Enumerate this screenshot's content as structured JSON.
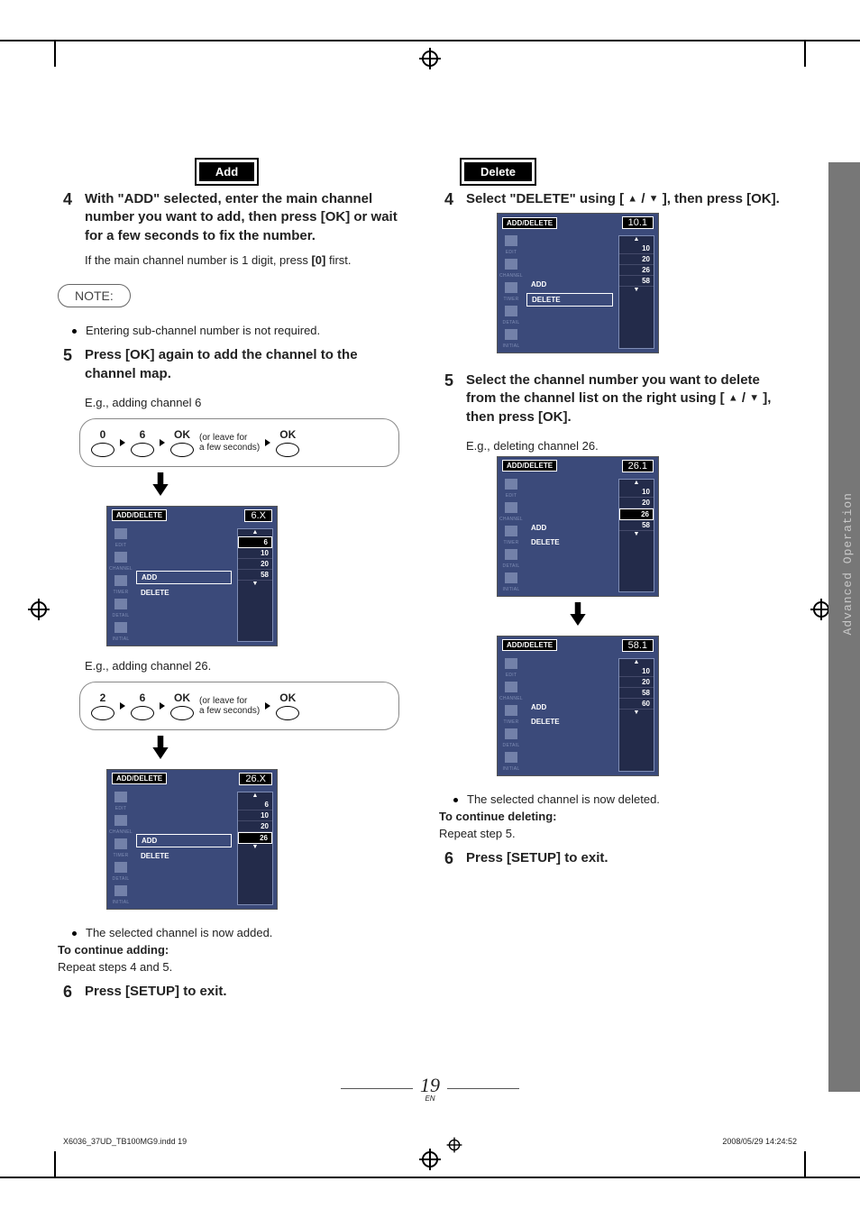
{
  "left": {
    "tag": "Add",
    "step4": {
      "num": "4",
      "body_parts": [
        "With \"ADD\" selected, enter the main channel number you want to add, then press ",
        "[OK]",
        " or wait for a few seconds to fix the number."
      ],
      "sub_parts": [
        "If the main channel number is 1 digit, press ",
        "[0]",
        " first."
      ]
    },
    "note_label": "NOTE:",
    "note_bullet": "Entering sub-channel number is not required.",
    "step5": {
      "num": "5",
      "body": "Press [OK] again to add the channel to the channel map."
    },
    "eg6": "E.g., adding channel 6",
    "seq6": {
      "b1": "0",
      "b2": "6",
      "b3": "OK",
      "leave1": "(or leave for",
      "leave2": "a few seconds)",
      "b4": "OK"
    },
    "tv6": {
      "title": "ADD/DELETE",
      "ch": "6.X",
      "sidebar": [
        "EDIT",
        "CHANNEL",
        "TIMER",
        "DETAIL",
        "INITIAL"
      ],
      "opts": {
        "add": "ADD",
        "del": "DELETE",
        "sel": "add"
      },
      "list": [
        "6",
        "10",
        "20",
        "58"
      ],
      "highlight": "6"
    },
    "eg26": "E.g., adding channel 26.",
    "seq26": {
      "b1": "2",
      "b2": "6",
      "b3": "OK",
      "leave1": "(or leave for",
      "leave2": "a few seconds)",
      "b4": "OK"
    },
    "tv26": {
      "title": "ADD/DELETE",
      "ch": "26.X",
      "sidebar": [
        "EDIT",
        "CHANNEL",
        "TIMER",
        "DETAIL",
        "INITIAL"
      ],
      "opts": {
        "add": "ADD",
        "del": "DELETE",
        "sel": "add"
      },
      "list": [
        "6",
        "10",
        "20",
        "26"
      ],
      "highlight": "26"
    },
    "added_bullet": "The selected channel is now added.",
    "to_continue": "To continue adding:",
    "repeat": "Repeat steps 4 and 5.",
    "step6": {
      "num": "6",
      "body": "Press [SETUP] to exit."
    }
  },
  "right": {
    "tag": "Delete",
    "step4": {
      "num": "4",
      "pre": "Select \"DELETE\" using [ ",
      "mid": " / ",
      "post": " ], then press [OK]."
    },
    "tv10": {
      "title": "ADD/DELETE",
      "ch": "10.1",
      "sidebar": [
        "EDIT",
        "CHANNEL",
        "TIMER",
        "DETAIL",
        "INITIAL"
      ],
      "opts": {
        "add": "ADD",
        "del": "DELETE",
        "sel": "del"
      },
      "list": [
        "10",
        "20",
        "26",
        "58"
      ],
      "highlight": ""
    },
    "step5": {
      "num": "5",
      "pre": "Select the channel number you want to delete from the channel list on the right using [ ",
      "mid": " / ",
      "post": " ], then press [OK]."
    },
    "eg26": "E.g., deleting channel 26.",
    "tv26a": {
      "title": "ADD/DELETE",
      "ch": "26.1",
      "sidebar": [
        "EDIT",
        "CHANNEL",
        "TIMER",
        "DETAIL",
        "INITIAL"
      ],
      "opts": {
        "add": "ADD",
        "del": "DELETE",
        "sel": "none"
      },
      "list": [
        "10",
        "20",
        "26",
        "58"
      ],
      "highlight": "26"
    },
    "tv26b": {
      "title": "ADD/DELETE",
      "ch": "58.1",
      "sidebar": [
        "EDIT",
        "CHANNEL",
        "TIMER",
        "DETAIL",
        "INITIAL"
      ],
      "opts": {
        "add": "ADD",
        "del": "DELETE",
        "sel": "none"
      },
      "list": [
        "10",
        "20",
        "58",
        "60"
      ],
      "highlight": ""
    },
    "deleted_bullet": "The selected channel is now deleted.",
    "to_continue": "To continue deleting:",
    "repeat": "Repeat step 5.",
    "step6": {
      "num": "6",
      "body": "Press [SETUP] to exit."
    }
  },
  "side_tab": "Advanced\nOperation",
  "page_number": "19",
  "page_lang": "EN",
  "footer_left": "X6036_37UD_TB100MG9.indd   19",
  "footer_right": "2008/05/29   14:24:52",
  "colors": {
    "tv_bg": "#3b4a7a",
    "rail": "#777777",
    "rail_text": "#c9c9c9"
  }
}
